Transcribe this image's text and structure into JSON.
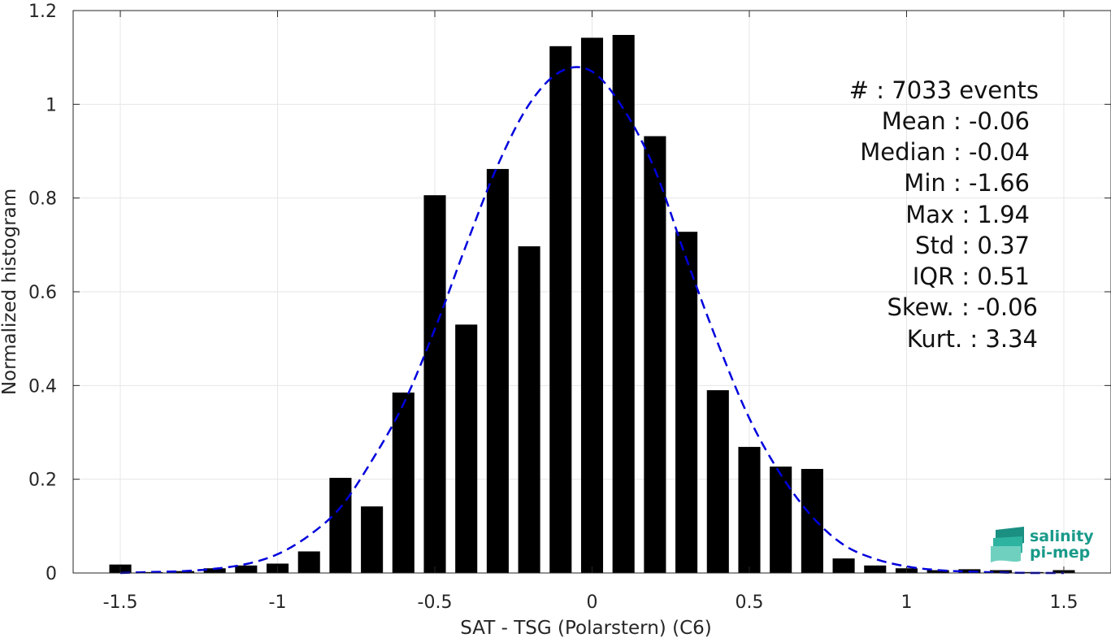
{
  "chart_data": {
    "type": "bar",
    "xlabel": "SAT - TSG (Polarstern) (C6)",
    "ylabel": "Normalized histogram",
    "xlim": [
      -1.65,
      1.65
    ],
    "ylim": [
      0,
      1.2
    ],
    "x_ticks": [
      "-1.5",
      "-1",
      "-0.5",
      "0",
      "0.5",
      "1",
      "1.5"
    ],
    "y_ticks": [
      "0",
      "0.2",
      "0.4",
      "0.6",
      "0.8",
      "1",
      "1.2"
    ],
    "grid": true,
    "bar_color": "#000000",
    "bar_width": 0.07,
    "bars": [
      {
        "x": -1.5,
        "y": 0.018
      },
      {
        "x": -1.4,
        "y": 0.002
      },
      {
        "x": -1.3,
        "y": 0.004
      },
      {
        "x": -1.2,
        "y": 0.01
      },
      {
        "x": -1.1,
        "y": 0.016
      },
      {
        "x": -1.0,
        "y": 0.02
      },
      {
        "x": -0.9,
        "y": 0.046
      },
      {
        "x": -0.8,
        "y": 0.203
      },
      {
        "x": -0.7,
        "y": 0.142
      },
      {
        "x": -0.6,
        "y": 0.385
      },
      {
        "x": -0.5,
        "y": 0.806
      },
      {
        "x": -0.4,
        "y": 0.53
      },
      {
        "x": -0.3,
        "y": 0.862
      },
      {
        "x": -0.2,
        "y": 0.697
      },
      {
        "x": -0.1,
        "y": 1.124
      },
      {
        "x": 0.0,
        "y": 1.142
      },
      {
        "x": 0.1,
        "y": 1.148
      },
      {
        "x": 0.2,
        "y": 0.932
      },
      {
        "x": 0.3,
        "y": 0.728
      },
      {
        "x": 0.4,
        "y": 0.39
      },
      {
        "x": 0.5,
        "y": 0.269
      },
      {
        "x": 0.6,
        "y": 0.227
      },
      {
        "x": 0.7,
        "y": 0.222
      },
      {
        "x": 0.8,
        "y": 0.031
      },
      {
        "x": 0.9,
        "y": 0.016
      },
      {
        "x": 1.0,
        "y": 0.01
      },
      {
        "x": 1.1,
        "y": 0.006
      },
      {
        "x": 1.2,
        "y": 0.008
      },
      {
        "x": 1.3,
        "y": 0.006
      },
      {
        "x": 1.4,
        "y": 0.002
      },
      {
        "x": 1.5,
        "y": 0.006
      }
    ],
    "fit_curve": {
      "color": "#0000dd",
      "style": "dashed",
      "x": [
        -1.5,
        -1.4,
        -1.3,
        -1.2,
        -1.1,
        -1.0,
        -0.9,
        -0.8,
        -0.7,
        -0.6,
        -0.5,
        -0.4,
        -0.3,
        -0.2,
        -0.1,
        0.0,
        0.1,
        0.2,
        0.3,
        0.4,
        0.5,
        0.6,
        0.7,
        0.8,
        0.9,
        1.0,
        1.1,
        1.2,
        1.3,
        1.4,
        1.5
      ],
      "y": [
        0.0,
        0.002,
        0.004,
        0.009,
        0.019,
        0.04,
        0.08,
        0.14,
        0.24,
        0.36,
        0.52,
        0.7,
        0.87,
        1.0,
        1.07,
        1.07,
        0.99,
        0.86,
        0.67,
        0.49,
        0.33,
        0.21,
        0.12,
        0.06,
        0.03,
        0.014,
        0.006,
        0.003,
        0.001,
        0.0,
        0.0
      ]
    }
  },
  "stats": [
    "#  : 7033 events",
    "Mean : -0.06",
    "Median : -0.04",
    "Min : -1.66",
    "Max : 1.94",
    "Std : 0.37",
    "IQR : 0.51",
    "Skew. : -0.06",
    "Kurt. : 3.34"
  ],
  "logo": {
    "line1": "salinity",
    "line2": "pi-mep",
    "color": "#1a9a8a"
  }
}
